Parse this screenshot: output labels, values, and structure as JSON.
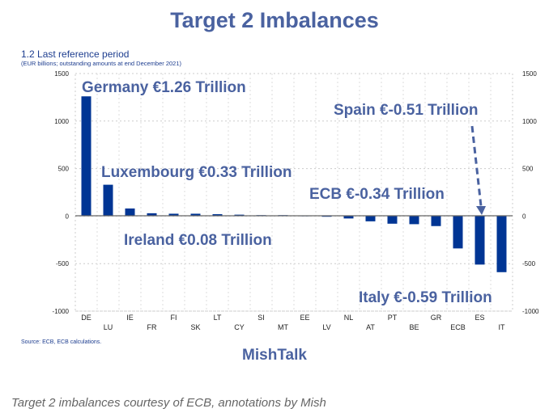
{
  "title": "Target 2 Imbalances",
  "chart_data": {
    "type": "bar",
    "title": "1.2 Last reference period",
    "subtitle": "(EUR billions; outstanding amounts at end December 2021)",
    "categories": [
      "DE",
      "LU",
      "IE",
      "FR",
      "FI",
      "SK",
      "LT",
      "CY",
      "SI",
      "MT",
      "EE",
      "LV",
      "NL",
      "AT",
      "PT",
      "BE",
      "GR",
      "ECB",
      "ES",
      "IT"
    ],
    "values": [
      1260,
      330,
      80,
      30,
      25,
      25,
      20,
      15,
      10,
      10,
      5,
      -5,
      -25,
      -55,
      -80,
      -85,
      -105,
      -340,
      -510,
      -590
    ],
    "ylim": [
      -1000,
      1500
    ],
    "yticks": [
      "1500",
      "1000",
      "500",
      "0",
      "-500",
      "-1000"
    ],
    "ytick_values": [
      1500,
      1000,
      500,
      0,
      -500,
      -1000
    ],
    "grid": true,
    "bar_color": "#003594",
    "annotations": [
      {
        "text": "Germany €1.26 Trillion",
        "category": "DE"
      },
      {
        "text": "Luxembourg €0.33 Trillion",
        "category": "LU"
      },
      {
        "text": "Ireland €0.08 Trillion",
        "category": "IE"
      },
      {
        "text": "ECB €-0.34 Trillion",
        "category": "ECB"
      },
      {
        "text": "Spain €-0.51 Trillion",
        "category": "ES"
      },
      {
        "text": "Italy €-0.59 Trillion",
        "category": "IT"
      }
    ],
    "source": "Source: ECB, ECB calculations."
  },
  "brand": "MishTalk",
  "caption": "Target 2 imbalances courtesy of ECB, annotations by Mish"
}
